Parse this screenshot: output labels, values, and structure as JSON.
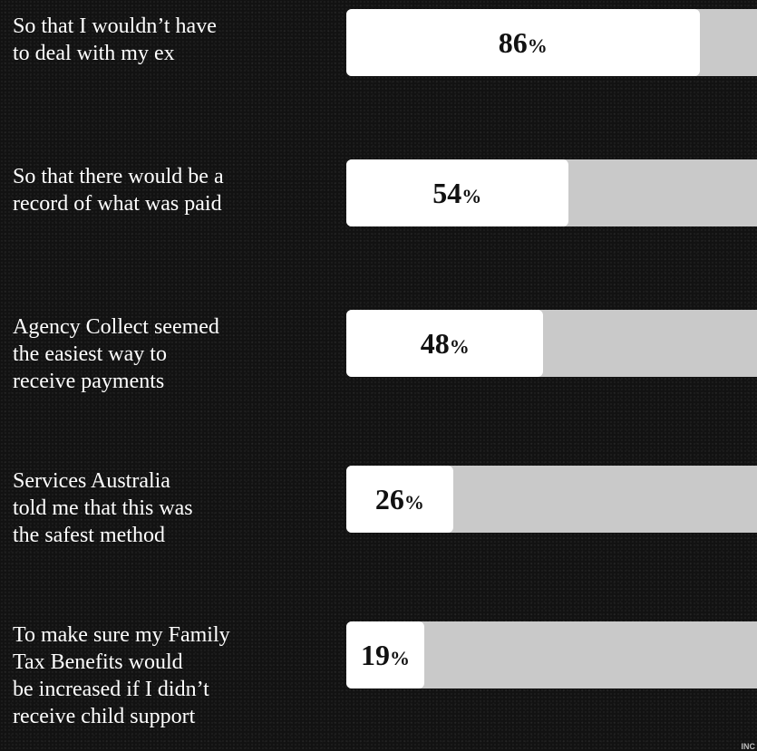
{
  "chart_data": {
    "type": "bar",
    "orientation": "horizontal",
    "categories": [
      "So that I wouldn’t have to deal with my ex",
      "So that there would be a record of what was paid",
      "Agency Collect seemed the easiest way to receive payments",
      "Services Australia told me that this was the safest method",
      "To make sure my Family Tax Benefits would be increased if I didn’t receive child support"
    ],
    "label_lines": [
      [
        "So that I wouldn’t have",
        "to deal with my ex"
      ],
      [
        "So that there would be a",
        "record of what was paid"
      ],
      [
        "Agency Collect seemed",
        "the easiest way to",
        "receive payments"
      ],
      [
        "Services Australia",
        "told me that this was",
        "the safest method"
      ],
      [
        "To make sure my Family",
        "Tax Benefits would",
        "be increased if I didn’t",
        "receive child support"
      ]
    ],
    "values": [
      86,
      54,
      48,
      26,
      19
    ],
    "value_suffix": "%",
    "xlim": [
      0,
      100
    ],
    "colors": {
      "fill": "#ffffff",
      "track": "#c9c9c9",
      "background": "#121212"
    }
  },
  "corner_text": "INC"
}
